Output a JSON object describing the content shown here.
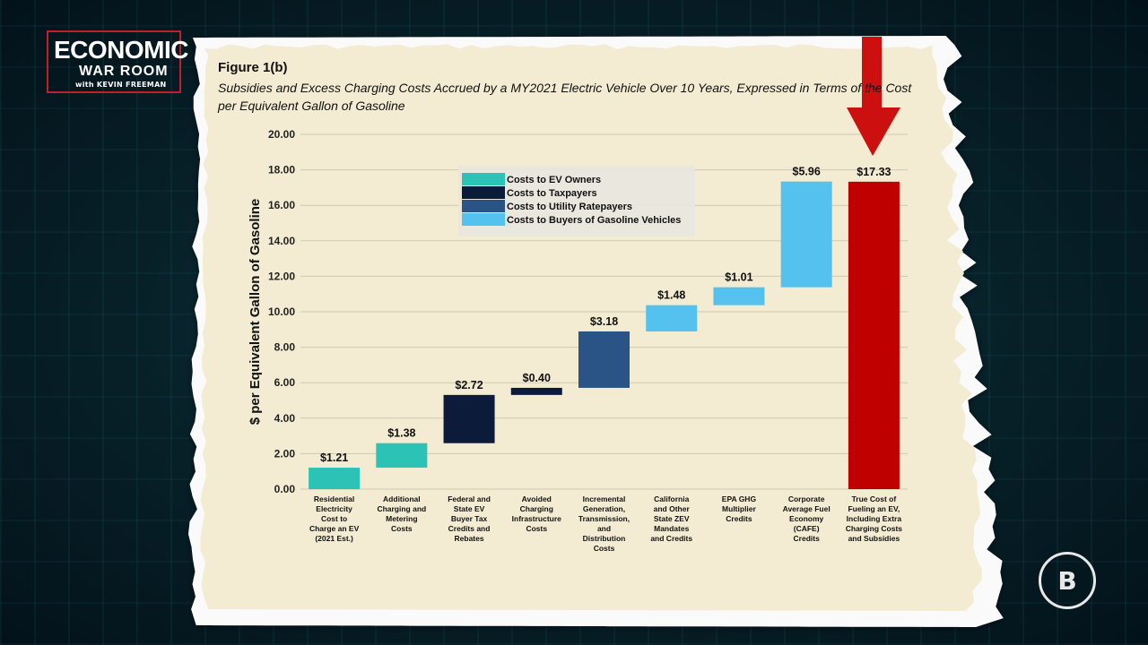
{
  "logo": {
    "line1": "ECONOMIC",
    "line2": "WAR ROOM",
    "line3": "with KEVIN FREEMAN"
  },
  "brand_icon": "bold-b-logo-icon",
  "colors": {
    "ev_owners": "#2cc3b6",
    "taxpayers": "#0d1b3a",
    "utility": "#2a5486",
    "gas_buyers": "#55c1ee",
    "total": "#c00000",
    "arrow": "#cc1010",
    "paper": "#f3ecd2"
  },
  "figure": {
    "title": "Figure 1(b)",
    "subtitle": "Subsidies and Excess Charging Costs Accrued by a MY2021 Electric Vehicle Over 10 Years, Expressed in Terms of the Cost per Equivalent Gallon of Gasoline"
  },
  "chart_data": {
    "type": "bar",
    "subtype": "waterfall",
    "ylabel": "$ per Equivalent Gallon of Gasoline",
    "ylim": [
      0,
      20
    ],
    "yticks": [
      "0.00",
      "2.00",
      "4.00",
      "6.00",
      "8.00",
      "10.00",
      "12.00",
      "14.00",
      "16.00",
      "18.00",
      "20.00"
    ],
    "grid": true,
    "legend_position": "top-center",
    "legend": [
      {
        "name": "Costs to EV Owners",
        "color": "#2cc3b6"
      },
      {
        "name": "Costs to Taxpayers",
        "color": "#0d1b3a"
      },
      {
        "name": "Costs to Utility Ratepayers",
        "color": "#2a5486"
      },
      {
        "name": "Costs to Buyers of Gasoline Vehicles",
        "color": "#55c1ee"
      }
    ],
    "categories": [
      "Residential Electricity Cost to Charge an EV (2021 Est.)",
      "Additional Charging and Metering Costs",
      "Federal and State EV Buyer Tax Credits and Rebates",
      "Avoided Charging Infrastructure Costs",
      "Incremental Generation, Transmission, and Distribution Costs",
      "California and Other State ZEV Mandates and Credits",
      "EPA GHG Multiplier Credits",
      "Corporate Average Fuel Economy (CAFE) Credits",
      "True Cost of Fueling an EV, Including Extra Charging Costs and Subsidies"
    ],
    "category_lines": [
      [
        "Residential",
        "Electricity",
        "Cost to",
        "Charge an EV",
        "(2021 Est.)"
      ],
      [
        "Additional",
        "Charging and",
        "Metering",
        "Costs"
      ],
      [
        "Federal and",
        "State EV",
        "Buyer Tax",
        "Credits and",
        "Rebates"
      ],
      [
        "Avoided",
        "Charging",
        "Infrastructure",
        "Costs"
      ],
      [
        "Incremental",
        "Generation,",
        "Transmission,",
        "and",
        "Distribution",
        "Costs"
      ],
      [
        "California",
        "and Other",
        "State ZEV",
        "Mandates",
        "and Credits"
      ],
      [
        "EPA GHG",
        "Multiplier",
        "Credits"
      ],
      [
        "Corporate",
        "Average Fuel",
        "Economy",
        "(CAFE)",
        "Credits"
      ],
      [
        "True Cost of",
        "Fueling an EV,",
        "Including Extra",
        "Charging Costs",
        "and Subsidies"
      ]
    ],
    "values": [
      1.21,
      1.38,
      2.72,
      0.4,
      3.18,
      1.48,
      1.01,
      5.96,
      17.33
    ],
    "bases": [
      0,
      1.21,
      2.59,
      5.31,
      5.71,
      8.89,
      10.37,
      11.38,
      0
    ],
    "labels": [
      "$1.21",
      "$1.38",
      "$2.72",
      "$0.40",
      "$3.18",
      "$1.48",
      "$1.01",
      "$5.96",
      "$17.33"
    ],
    "groups": [
      "ev_owners",
      "ev_owners",
      "taxpayers",
      "taxpayers",
      "utility",
      "gas_buyers",
      "gas_buyers",
      "gas_buyers",
      "total"
    ]
  }
}
